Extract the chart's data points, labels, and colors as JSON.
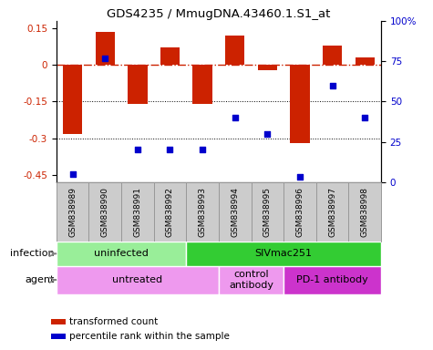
{
  "title": "GDS4235 / MmugDNA.43460.1.S1_at",
  "samples": [
    "GSM838989",
    "GSM838990",
    "GSM838991",
    "GSM838992",
    "GSM838993",
    "GSM838994",
    "GSM838995",
    "GSM838996",
    "GSM838997",
    "GSM838998"
  ],
  "bar_values": [
    -0.285,
    0.135,
    -0.16,
    0.07,
    -0.16,
    0.12,
    -0.02,
    -0.32,
    0.08,
    0.03
  ],
  "scatter_pct": [
    5,
    77,
    20,
    20,
    20,
    40,
    30,
    3,
    60,
    40
  ],
  "bar_color": "#cc2200",
  "scatter_color": "#0000cc",
  "ylim_left": [
    -0.48,
    0.18
  ],
  "yticks_left": [
    0.15,
    0.0,
    -0.15,
    -0.3,
    -0.45
  ],
  "yticks_right": [
    100,
    75,
    50,
    25,
    0
  ],
  "hline_y": 0.0,
  "dotted_lines": [
    -0.15,
    -0.3
  ],
  "infection_groups": [
    {
      "label": "uninfected",
      "start": 0,
      "end": 4,
      "color": "#99ee99"
    },
    {
      "label": "SIVmac251",
      "start": 4,
      "end": 10,
      "color": "#33cc33"
    }
  ],
  "agent_groups": [
    {
      "label": "untreated",
      "start": 0,
      "end": 5,
      "color": "#ee99ee"
    },
    {
      "label": "control\nantibody",
      "start": 5,
      "end": 7,
      "color": "#ee99ee"
    },
    {
      "label": "PD-1 antibody",
      "start": 7,
      "end": 10,
      "color": "#cc33cc"
    }
  ],
  "legend_items": [
    {
      "label": "transformed count",
      "color": "#cc2200"
    },
    {
      "label": "percentile rank within the sample",
      "color": "#0000cc"
    }
  ],
  "infection_label": "infection",
  "agent_label": "agent",
  "sample_bg_color": "#cccccc",
  "sample_border_color": "#999999"
}
